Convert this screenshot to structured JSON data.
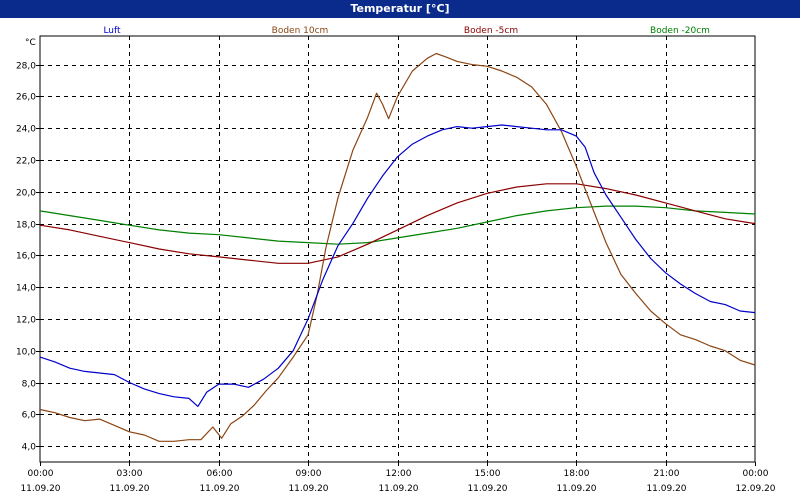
{
  "window": {
    "title": "Temperatur [°C]"
  },
  "chart_data": {
    "type": "line",
    "title": "Temperatur [°C]",
    "ylabel": "°C",
    "ylim": [
      3.0,
      29.8
    ],
    "y_ticks": [
      "4,0",
      "6,0",
      "8,0",
      "10,0",
      "12,0",
      "14,0",
      "16,0",
      "18,0",
      "20,0",
      "22,0",
      "24,0",
      "26,0",
      "28,0"
    ],
    "y_tick_values": [
      4,
      6,
      8,
      10,
      12,
      14,
      16,
      18,
      20,
      22,
      24,
      26,
      28
    ],
    "x_unit": "hours",
    "xlim": [
      0,
      24
    ],
    "x_ticks": [
      {
        "hour": 0,
        "time": "00:00",
        "date": "11.09.20"
      },
      {
        "hour": 3,
        "time": "03:00",
        "date": "11.09.20"
      },
      {
        "hour": 6,
        "time": "06:00",
        "date": "11.09.20"
      },
      {
        "hour": 9,
        "time": "09:00",
        "date": "11.09.20"
      },
      {
        "hour": 12,
        "time": "12:00",
        "date": "11.09.20"
      },
      {
        "hour": 15,
        "time": "15:00",
        "date": "11.09.20"
      },
      {
        "hour": 18,
        "time": "18:00",
        "date": "11.09.20"
      },
      {
        "hour": 21,
        "time": "21:00",
        "date": "11.09.20"
      },
      {
        "hour": 24,
        "time": "00:00",
        "date": "12.09.20"
      }
    ],
    "grid": true,
    "legend_position": "top",
    "series": [
      {
        "name": "Luft",
        "color": "#0000cc",
        "points": [
          [
            0,
            9.6
          ],
          [
            0.5,
            9.3
          ],
          [
            1,
            8.9
          ],
          [
            1.5,
            8.7
          ],
          [
            2,
            8.6
          ],
          [
            2.5,
            8.5
          ],
          [
            3,
            8.0
          ],
          [
            3.5,
            7.6
          ],
          [
            4,
            7.3
          ],
          [
            4.5,
            7.1
          ],
          [
            5,
            7.0
          ],
          [
            5.3,
            6.5
          ],
          [
            5.6,
            7.4
          ],
          [
            6,
            7.9
          ],
          [
            6.5,
            7.9
          ],
          [
            7,
            7.7
          ],
          [
            7.5,
            8.2
          ],
          [
            8,
            8.9
          ],
          [
            8.5,
            10.0
          ],
          [
            9,
            12.0
          ],
          [
            9.5,
            14.5
          ],
          [
            10,
            16.6
          ],
          [
            10.5,
            18.0
          ],
          [
            11,
            19.6
          ],
          [
            11.5,
            21.0
          ],
          [
            12,
            22.2
          ],
          [
            12.5,
            23.0
          ],
          [
            13,
            23.5
          ],
          [
            13.5,
            23.9
          ],
          [
            14,
            24.1
          ],
          [
            14.5,
            24.0
          ],
          [
            15,
            24.1
          ],
          [
            15.5,
            24.2
          ],
          [
            16,
            24.1
          ],
          [
            16.5,
            24.0
          ],
          [
            17,
            23.9
          ],
          [
            17.5,
            23.9
          ],
          [
            18,
            23.5
          ],
          [
            18.3,
            22.8
          ],
          [
            18.6,
            21.2
          ],
          [
            19,
            19.8
          ],
          [
            19.5,
            18.4
          ],
          [
            20,
            17.0
          ],
          [
            20.5,
            15.8
          ],
          [
            21,
            14.9
          ],
          [
            21.5,
            14.2
          ],
          [
            22,
            13.6
          ],
          [
            22.5,
            13.1
          ],
          [
            23,
            12.9
          ],
          [
            23.5,
            12.5
          ],
          [
            24,
            12.4
          ]
        ]
      },
      {
        "name": "Boden 10cm",
        "color": "#8b4513",
        "points": [
          [
            0,
            6.3
          ],
          [
            0.5,
            6.1
          ],
          [
            1,
            5.8
          ],
          [
            1.5,
            5.6
          ],
          [
            2,
            5.7
          ],
          [
            2.5,
            5.3
          ],
          [
            3,
            4.9
          ],
          [
            3.5,
            4.7
          ],
          [
            4,
            4.3
          ],
          [
            4.5,
            4.3
          ],
          [
            5,
            4.4
          ],
          [
            5.4,
            4.4
          ],
          [
            5.8,
            5.2
          ],
          [
            6.1,
            4.5
          ],
          [
            6.4,
            5.4
          ],
          [
            6.8,
            5.9
          ],
          [
            7.2,
            6.6
          ],
          [
            7.6,
            7.5
          ],
          [
            8,
            8.3
          ],
          [
            8.5,
            9.6
          ],
          [
            9,
            11.0
          ],
          [
            9.3,
            13.5
          ],
          [
            9.6,
            16.5
          ],
          [
            10,
            19.6
          ],
          [
            10.5,
            22.6
          ],
          [
            11,
            24.7
          ],
          [
            11.3,
            26.2
          ],
          [
            11.5,
            25.5
          ],
          [
            11.7,
            24.6
          ],
          [
            12,
            26.0
          ],
          [
            12.5,
            27.6
          ],
          [
            13,
            28.4
          ],
          [
            13.3,
            28.7
          ],
          [
            13.6,
            28.5
          ],
          [
            14,
            28.2
          ],
          [
            14.5,
            28.0
          ],
          [
            15,
            27.9
          ],
          [
            15.5,
            27.6
          ],
          [
            16,
            27.2
          ],
          [
            16.5,
            26.6
          ],
          [
            17,
            25.5
          ],
          [
            17.5,
            23.8
          ],
          [
            18,
            21.6
          ],
          [
            18.5,
            19.2
          ],
          [
            19,
            16.8
          ],
          [
            19.5,
            14.8
          ],
          [
            20,
            13.6
          ],
          [
            20.5,
            12.5
          ],
          [
            21,
            11.7
          ],
          [
            21.5,
            11.0
          ],
          [
            22,
            10.7
          ],
          [
            22.5,
            10.3
          ],
          [
            23,
            10.0
          ],
          [
            23.5,
            9.4
          ],
          [
            24,
            9.1
          ]
        ]
      },
      {
        "name": "Boden -5cm",
        "color": "#8b0000",
        "points": [
          [
            0,
            17.9
          ],
          [
            1,
            17.6
          ],
          [
            2,
            17.2
          ],
          [
            3,
            16.8
          ],
          [
            4,
            16.4
          ],
          [
            5,
            16.1
          ],
          [
            6,
            15.9
          ],
          [
            7,
            15.7
          ],
          [
            8,
            15.5
          ],
          [
            9,
            15.5
          ],
          [
            10,
            15.9
          ],
          [
            11,
            16.7
          ],
          [
            12,
            17.6
          ],
          [
            13,
            18.5
          ],
          [
            14,
            19.3
          ],
          [
            15,
            19.9
          ],
          [
            16,
            20.3
          ],
          [
            17,
            20.5
          ],
          [
            18,
            20.5
          ],
          [
            19,
            20.2
          ],
          [
            20,
            19.8
          ],
          [
            21,
            19.3
          ],
          [
            22,
            18.8
          ],
          [
            23,
            18.3
          ],
          [
            24,
            18.0
          ]
        ]
      },
      {
        "name": "Boden -20cm",
        "color": "#008000",
        "points": [
          [
            0,
            18.8
          ],
          [
            1,
            18.5
          ],
          [
            2,
            18.2
          ],
          [
            3,
            17.9
          ],
          [
            4,
            17.6
          ],
          [
            5,
            17.4
          ],
          [
            6,
            17.3
          ],
          [
            7,
            17.1
          ],
          [
            8,
            16.9
          ],
          [
            9,
            16.8
          ],
          [
            10,
            16.7
          ],
          [
            11,
            16.8
          ],
          [
            12,
            17.1
          ],
          [
            13,
            17.4
          ],
          [
            14,
            17.7
          ],
          [
            15,
            18.1
          ],
          [
            16,
            18.5
          ],
          [
            17,
            18.8
          ],
          [
            18,
            19.0
          ],
          [
            19,
            19.1
          ],
          [
            20,
            19.1
          ],
          [
            21,
            19.0
          ],
          [
            22,
            18.8
          ],
          [
            23,
            18.7
          ],
          [
            24,
            18.6
          ]
        ]
      }
    ]
  }
}
